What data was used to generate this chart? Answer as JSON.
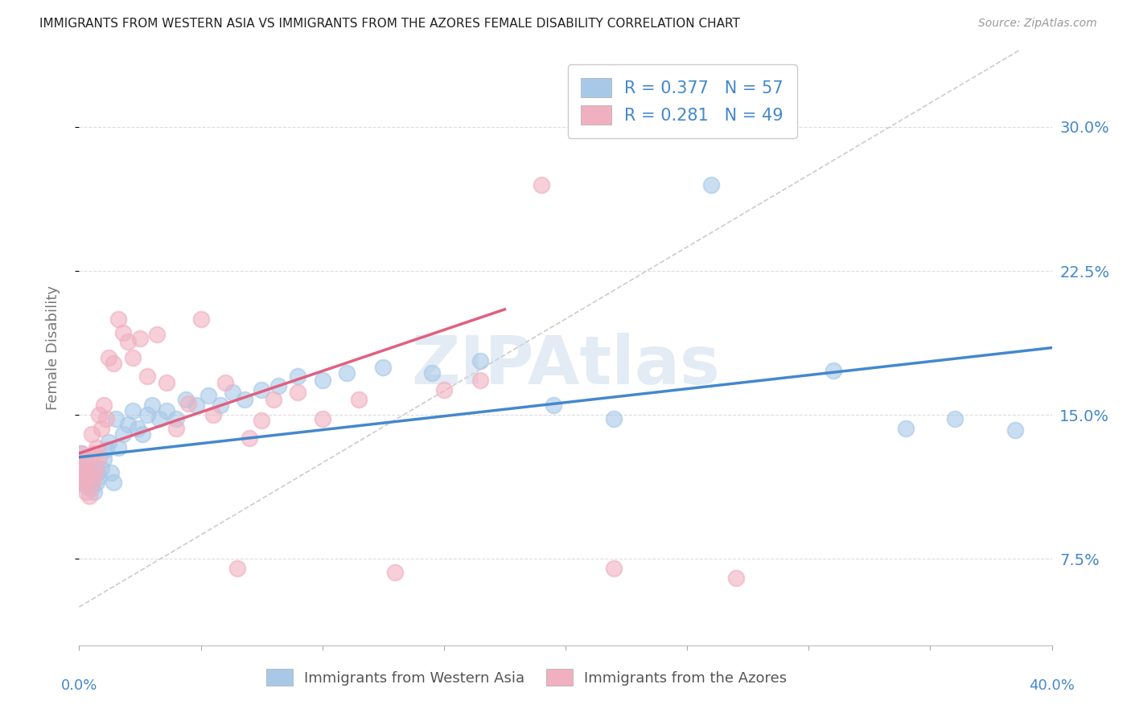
{
  "title": "IMMIGRANTS FROM WESTERN ASIA VS IMMIGRANTS FROM THE AZORES FEMALE DISABILITY CORRELATION CHART",
  "source": "Source: ZipAtlas.com",
  "ylabel": "Female Disability",
  "ytick_labels": [
    "7.5%",
    "15.0%",
    "22.5%",
    "30.0%"
  ],
  "ytick_values": [
    0.075,
    0.15,
    0.225,
    0.3
  ],
  "xlim": [
    0.0,
    0.4
  ],
  "ylim": [
    0.03,
    0.34
  ],
  "color_blue": "#a8c8e8",
  "color_pink": "#f0b0c0",
  "color_blue_line": "#4488cc",
  "color_pink_line": "#e06080",
  "color_diag": "#cccccc",
  "watermark": "ZIPAtlas",
  "blue_scatter_x": [
    0.001,
    0.002,
    0.002,
    0.003,
    0.003,
    0.004,
    0.004,
    0.005,
    0.005,
    0.006,
    0.007,
    0.007,
    0.008,
    0.009,
    0.01,
    0.011,
    0.012,
    0.013,
    0.014,
    0.015,
    0.016,
    0.018,
    0.02,
    0.022,
    0.024,
    0.026,
    0.028,
    0.03,
    0.033,
    0.036,
    0.04,
    0.044,
    0.048,
    0.053,
    0.058,
    0.063,
    0.068,
    0.075,
    0.082,
    0.09,
    0.1,
    0.11,
    0.125,
    0.145,
    0.165,
    0.195,
    0.22,
    0.26,
    0.31,
    0.34,
    0.36,
    0.385
  ],
  "blue_scatter_y": [
    0.13,
    0.125,
    0.118,
    0.12,
    0.113,
    0.122,
    0.116,
    0.112,
    0.118,
    0.11,
    0.115,
    0.12,
    0.118,
    0.122,
    0.127,
    0.132,
    0.136,
    0.12,
    0.115,
    0.148,
    0.133,
    0.14,
    0.145,
    0.152,
    0.143,
    0.14,
    0.15,
    0.155,
    0.148,
    0.152,
    0.148,
    0.158,
    0.155,
    0.16,
    0.155,
    0.162,
    0.158,
    0.163,
    0.165,
    0.17,
    0.168,
    0.172,
    0.175,
    0.172,
    0.178,
    0.155,
    0.148,
    0.27,
    0.173,
    0.143,
    0.148,
    0.142
  ],
  "pink_scatter_x": [
    0.001,
    0.001,
    0.001,
    0.002,
    0.002,
    0.003,
    0.003,
    0.003,
    0.004,
    0.004,
    0.005,
    0.005,
    0.006,
    0.006,
    0.007,
    0.007,
    0.008,
    0.008,
    0.009,
    0.01,
    0.011,
    0.012,
    0.014,
    0.016,
    0.018,
    0.02,
    0.022,
    0.025,
    0.028,
    0.032,
    0.036,
    0.04,
    0.045,
    0.05,
    0.055,
    0.06,
    0.065,
    0.07,
    0.075,
    0.08,
    0.09,
    0.1,
    0.115,
    0.13,
    0.15,
    0.165,
    0.19,
    0.22,
    0.27
  ],
  "pink_scatter_y": [
    0.13,
    0.122,
    0.115,
    0.115,
    0.122,
    0.11,
    0.127,
    0.118,
    0.108,
    0.12,
    0.114,
    0.14,
    0.118,
    0.13,
    0.122,
    0.133,
    0.128,
    0.15,
    0.143,
    0.155,
    0.148,
    0.18,
    0.177,
    0.2,
    0.193,
    0.188,
    0.18,
    0.19,
    0.17,
    0.192,
    0.167,
    0.143,
    0.156,
    0.2,
    0.15,
    0.167,
    0.07,
    0.138,
    0.147,
    0.158,
    0.162,
    0.148,
    0.158,
    0.068,
    0.163,
    0.168,
    0.27,
    0.07,
    0.065
  ],
  "blue_line_x0": 0.0,
  "blue_line_x1": 0.4,
  "blue_line_y0": 0.128,
  "blue_line_y1": 0.185,
  "pink_line_x0": 0.0,
  "pink_line_x1": 0.175,
  "pink_line_y0": 0.13,
  "pink_line_y1": 0.205
}
